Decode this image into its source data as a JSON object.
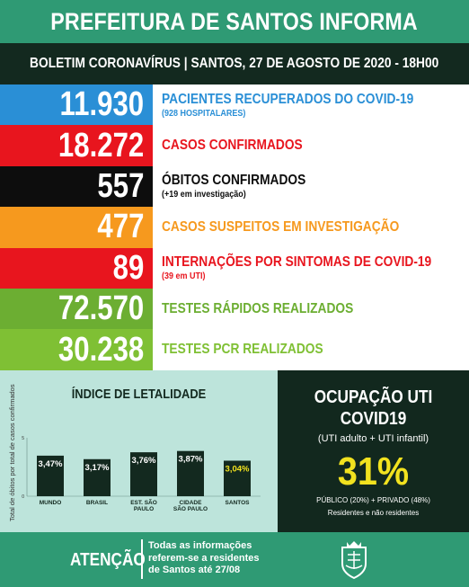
{
  "header": {
    "title": "PREFEITURA DE SANTOS INFORMA"
  },
  "subheader": {
    "text": "BOLETIM CORONAVÍRUS | SANTOS, 27 DE AGOSTO DE 2020 - 18H00"
  },
  "stats": [
    {
      "value": "11.930",
      "label": "PACIENTES RECUPERADOS DO COVID-19",
      "note": "(928 HOSPITALARES)",
      "box_color": "#2a8fd6",
      "label_color": "#2a8fd6",
      "note_color": "#2a8fd6"
    },
    {
      "value": "18.272",
      "label": "CASOS CONFIRMADOS",
      "note": "",
      "box_color": "#e8151e",
      "label_color": "#e8151e",
      "note_color": "#e8151e"
    },
    {
      "value": "557",
      "label": "ÓBITOS CONFIRMADOS",
      "note": "(+19 em investigação)",
      "box_color": "#0d0d0d",
      "label_color": "#0d0d0d",
      "note_color": "#0d0d0d"
    },
    {
      "value": "477",
      "label": "CASOS SUSPEITOS EM INVESTIGAÇÃO",
      "note": "",
      "box_color": "#f6991e",
      "label_color": "#f6991e",
      "note_color": "#f6991e"
    },
    {
      "value": "89",
      "label": "INTERNAÇÕES POR SINTOMAS DE COVID-19",
      "note": "(39 em UTI)",
      "box_color": "#e8151e",
      "label_color": "#e8151e",
      "note_color": "#e8151e"
    },
    {
      "value": "72.570",
      "label": "TESTES RÁPIDOS REALIZADOS",
      "note": "",
      "box_color": "#6cae32",
      "label_color": "#6cae32",
      "note_color": "#6cae32"
    },
    {
      "value": "30.238",
      "label": "TESTES PCR REALIZADOS",
      "note": "",
      "box_color": "#7fc034",
      "label_color": "#7fc034",
      "note_color": "#7fc034"
    }
  ],
  "lethality": {
    "title": "ÍNDICE DE LETALIDADE",
    "ylabel": "Total de óbitos por total de casos confirmados",
    "chart_data": {
      "type": "bar",
      "categories": [
        "MUNDO",
        "BRASIL",
        "EST. SÃO PAULO",
        "CIDADE SÃO PAULO",
        "SANTOS"
      ],
      "category_lines": [
        [
          "MUNDO"
        ],
        [
          "BRASIL"
        ],
        [
          "EST. SÃO",
          "PAULO"
        ],
        [
          "CIDADE",
          "SÃO PAULO"
        ],
        [
          "SANTOS"
        ]
      ],
      "values": [
        3.47,
        3.17,
        3.76,
        3.87,
        3.04
      ],
      "data_labels": [
        "3,47%",
        "3,17%",
        "3,76%",
        "3,87%",
        "3,04%"
      ],
      "bar_colors": [
        "#13291f",
        "#13291f",
        "#13291f",
        "#13291f",
        "#13291f"
      ],
      "label_colors": [
        "#ffffff",
        "#ffffff",
        "#ffffff",
        "#ffffff",
        "#f2e21f"
      ],
      "ylim": [
        0,
        5
      ],
      "yticks": [
        0,
        5
      ]
    }
  },
  "uti": {
    "title_line1": "OCUPAÇÃO UTI",
    "title_line2": "COVID19",
    "subtitle": "(UTI adulto + UTI infantil)",
    "value": "31%",
    "detail": "PÚBLICO (20%) + PRIVADO (48%)",
    "note": "Residentes e não residentes"
  },
  "footer": {
    "attention": "ATENÇÃO",
    "lines": [
      "Todas as informações",
      "referem-se a residentes",
      "de Santos até 27/08"
    ]
  },
  "colors": {
    "green": "#2f9a74",
    "dark": "#13291f",
    "yellow": "#f2e21f",
    "light_green": "#bde4db"
  }
}
